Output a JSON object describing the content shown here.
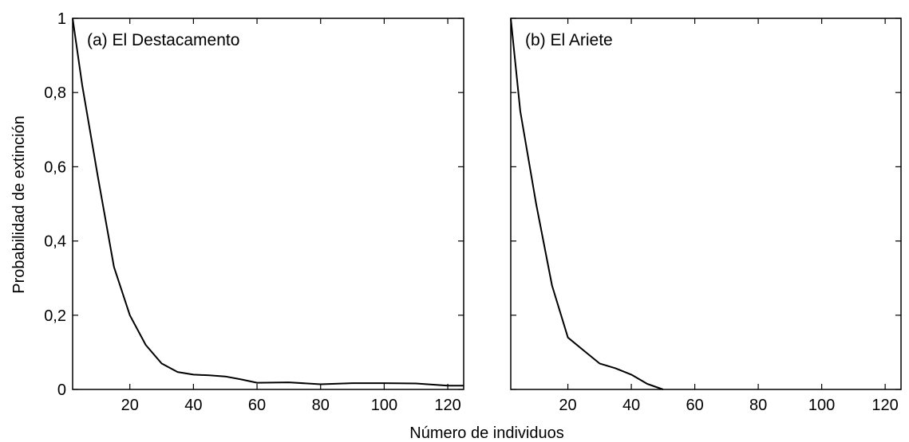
{
  "figure": {
    "ylabel": "Probabilidad de extinción",
    "xlabel": "Número de individuos"
  },
  "chart_data": [
    {
      "type": "line",
      "title": "(a) El Destacamento",
      "xlabel": "Número de individuos",
      "ylabel": "Probabilidad de extinción",
      "xlim": [
        2,
        125
      ],
      "ylim": [
        0,
        1
      ],
      "xticks": [
        20,
        40,
        60,
        80,
        100,
        120
      ],
      "yticks": [
        0,
        0.2,
        0.4,
        0.6,
        0.8,
        1
      ],
      "ytick_labels": [
        "0",
        "0,2",
        "0,4",
        "0,6",
        "0,8",
        "1"
      ],
      "show_ytick_labels": true,
      "grid": false,
      "series": [
        {
          "x": [
            2,
            5,
            10,
            15,
            20,
            25,
            30,
            35,
            40,
            45,
            50,
            55,
            60,
            70,
            80,
            90,
            100,
            110,
            120,
            125
          ],
          "y": [
            1.0,
            0.82,
            0.57,
            0.33,
            0.2,
            0.12,
            0.07,
            0.047,
            0.04,
            0.038,
            0.035,
            0.027,
            0.018,
            0.019,
            0.014,
            0.017,
            0.017,
            0.016,
            0.01,
            0.01
          ]
        }
      ]
    },
    {
      "type": "line",
      "title": "(b) El Ariete",
      "xlabel": "Número de individuos",
      "ylabel": "",
      "xlim": [
        2,
        125
      ],
      "ylim": [
        0,
        1
      ],
      "xticks": [
        20,
        40,
        60,
        80,
        100,
        120
      ],
      "yticks": [
        0,
        0.2,
        0.4,
        0.6,
        0.8,
        1
      ],
      "ytick_labels": [
        "",
        "",
        "",
        "",
        "",
        ""
      ],
      "show_ytick_labels": false,
      "grid": false,
      "series": [
        {
          "x": [
            2,
            5,
            10,
            15,
            20,
            25,
            30,
            35,
            40,
            45,
            50
          ],
          "y": [
            1.0,
            0.75,
            0.5,
            0.28,
            0.14,
            0.105,
            0.07,
            0.057,
            0.04,
            0.015,
            0.0
          ]
        }
      ]
    }
  ]
}
